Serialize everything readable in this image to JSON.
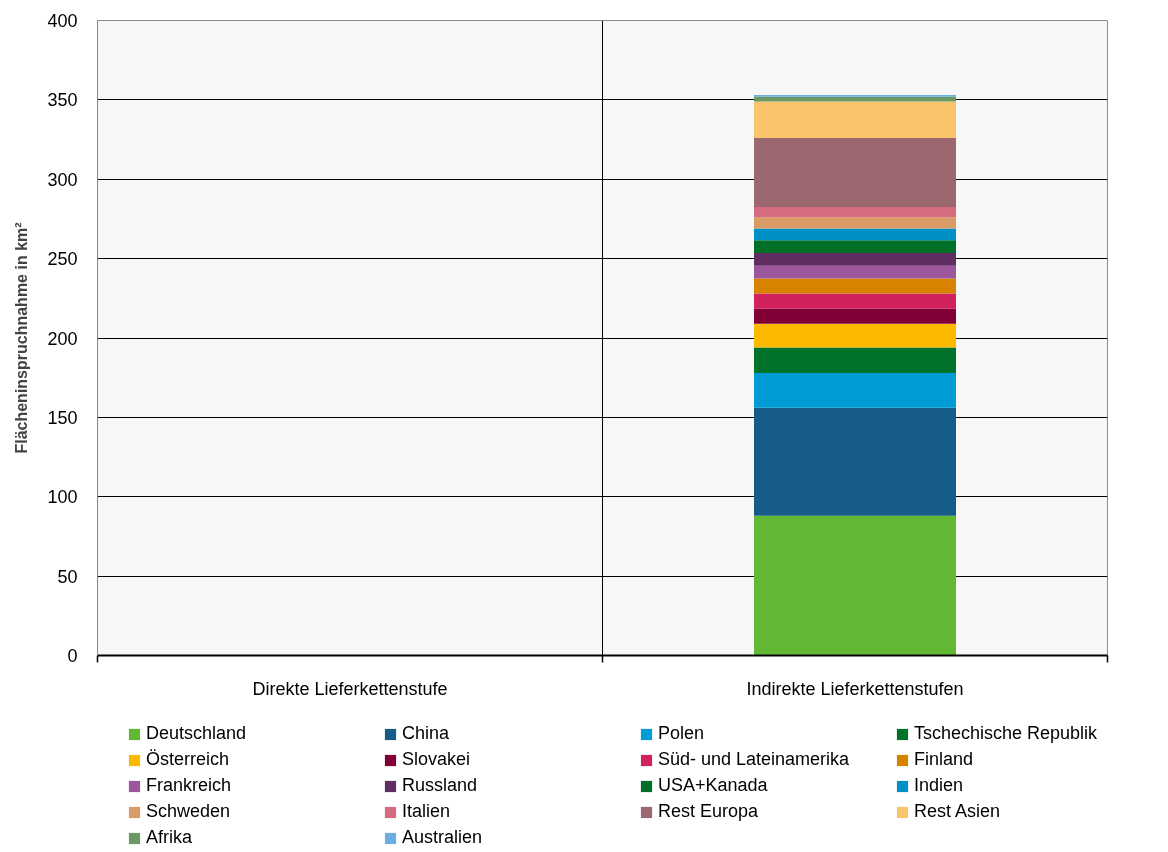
{
  "chart_data": {
    "type": "bar",
    "stacked": true,
    "ylabel": "Flächeninspruchnahme in km²",
    "categories": [
      "Direkte Lieferkettenstufe",
      "Indirekte Lieferkettenstufen"
    ],
    "series": [
      {
        "name": "Deutschland",
        "color": "#62b832",
        "values": [
          null,
          88
        ]
      },
      {
        "name": "China",
        "color": "#155c87",
        "values": [
          null,
          68
        ]
      },
      {
        "name": "Polen",
        "color": "#009cd6",
        "values": [
          null,
          22
        ]
      },
      {
        "name": "Tschechische Republik",
        "color": "#00732a",
        "values": [
          null,
          16
        ]
      },
      {
        "name": "Österreich",
        "color": "#fbba00",
        "values": [
          null,
          15
        ]
      },
      {
        "name": "Slovakei",
        "color": "#820038",
        "values": [
          null,
          9.5
        ]
      },
      {
        "name": "Süd- und Lateinamerika",
        "color": "#d1215f",
        "values": [
          null,
          9.5
        ]
      },
      {
        "name": "Finland",
        "color": "#d78300",
        "values": [
          null,
          9.5
        ]
      },
      {
        "name": "Frankreich",
        "color": "#9c569b",
        "values": [
          null,
          8
        ]
      },
      {
        "name": "Russland",
        "color": "#5f2d61",
        "values": [
          null,
          8
        ]
      },
      {
        "name": "USA+Kanada",
        "color": "#006f27",
        "values": [
          null,
          8
        ]
      },
      {
        "name": "Indien",
        "color": "#0090c8",
        "values": [
          null,
          7.5
        ]
      },
      {
        "name": "Schweden",
        "color": "#da9b67",
        "values": [
          null,
          7
        ]
      },
      {
        "name": "Italien",
        "color": "#d66a7f",
        "values": [
          null,
          6.5
        ]
      },
      {
        "name": "Rest Europa",
        "color": "#9b6870",
        "values": [
          null,
          43.5
        ]
      },
      {
        "name": "Rest Asien",
        "color": "#f9c56c",
        "values": [
          null,
          23
        ]
      },
      {
        "name": "Afrika",
        "color": "#6a9966",
        "values": [
          null,
          3
        ]
      },
      {
        "name": "Australien",
        "color": "#6caedd",
        "values": [
          null,
          1
        ]
      }
    ],
    "ylim": [
      0,
      400
    ],
    "yticks": [
      0,
      50,
      100,
      150,
      200,
      250,
      300,
      350,
      400
    ],
    "grid": true,
    "legend": "bottom"
  }
}
